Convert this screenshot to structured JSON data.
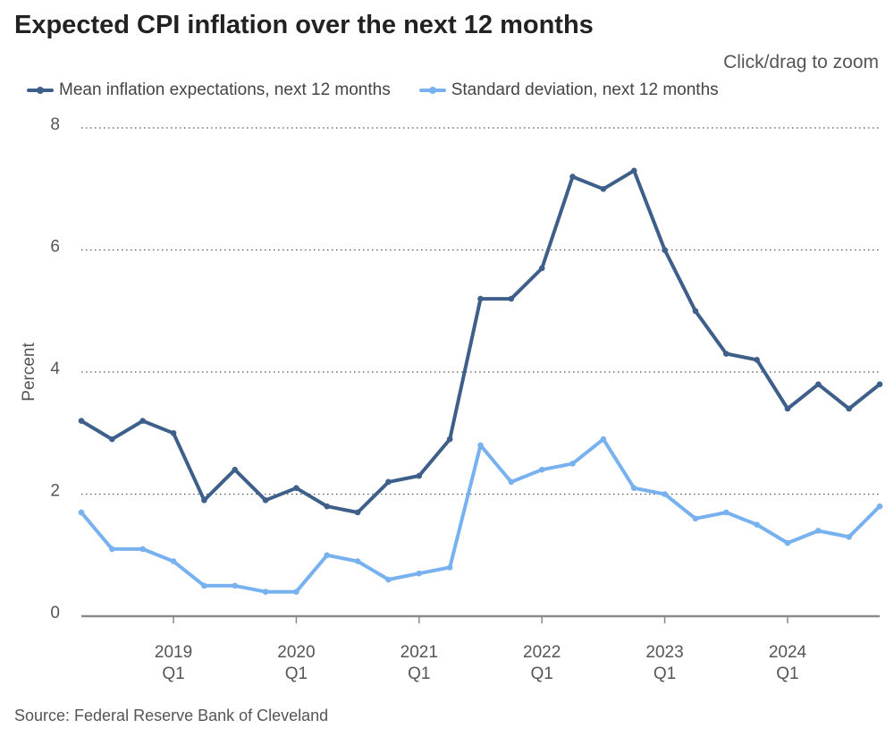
{
  "header": {
    "title": "Expected CPI inflation over the next 12 months",
    "zoom_hint": "Click/drag to zoom"
  },
  "footer": {
    "source": "Source: Federal Reserve Bank of Cleveland"
  },
  "chart_data": {
    "type": "line",
    "title": "Expected CPI inflation over the next 12 months",
    "xlabel": "",
    "ylabel": "Percent",
    "ylim": [
      0,
      8
    ],
    "yticks": [
      0,
      2,
      4,
      6,
      8
    ],
    "grid": "horizontal-dotted",
    "legend_position": "top-left",
    "x": [
      "2018Q2",
      "2018Q3",
      "2018Q4",
      "2019Q1",
      "2019Q2",
      "2019Q3",
      "2019Q4",
      "2020Q1",
      "2020Q2",
      "2020Q3",
      "2020Q4",
      "2021Q1",
      "2021Q2",
      "2021Q3",
      "2021Q4",
      "2022Q1",
      "2022Q2",
      "2022Q3",
      "2022Q4",
      "2023Q1",
      "2023Q2",
      "2023Q3",
      "2023Q4",
      "2024Q1",
      "2024Q2",
      "2024Q3",
      "2024Q4"
    ],
    "xticks": [
      {
        "x": "2019Q1",
        "year": "2019",
        "quarter": "Q1"
      },
      {
        "x": "2020Q1",
        "year": "2020",
        "quarter": "Q1"
      },
      {
        "x": "2021Q1",
        "year": "2021",
        "quarter": "Q1"
      },
      {
        "x": "2022Q1",
        "year": "2022",
        "quarter": "Q1"
      },
      {
        "x": "2023Q1",
        "year": "2023",
        "quarter": "Q1"
      },
      {
        "x": "2024Q1",
        "year": "2024",
        "quarter": "Q1"
      }
    ],
    "series": [
      {
        "name": "Mean inflation expectations, next 12 months",
        "color": "#3d5f8a",
        "values": [
          3.2,
          2.9,
          3.2,
          3.0,
          1.9,
          2.4,
          1.9,
          2.1,
          1.8,
          1.7,
          2.2,
          2.3,
          2.9,
          5.2,
          5.2,
          5.7,
          7.2,
          7.0,
          7.3,
          6.0,
          5.0,
          4.3,
          4.2,
          3.4,
          3.8,
          3.4,
          3.8
        ]
      },
      {
        "name": "Standard deviation, next 12 months",
        "color": "#77b1ef",
        "values": [
          1.7,
          1.1,
          1.1,
          0.9,
          0.5,
          0.5,
          0.4,
          0.4,
          1.0,
          0.9,
          0.6,
          0.7,
          0.8,
          2.8,
          2.2,
          2.4,
          2.5,
          2.9,
          2.1,
          2.0,
          1.6,
          1.7,
          1.5,
          1.2,
          1.4,
          1.3,
          1.8
        ]
      }
    ]
  }
}
